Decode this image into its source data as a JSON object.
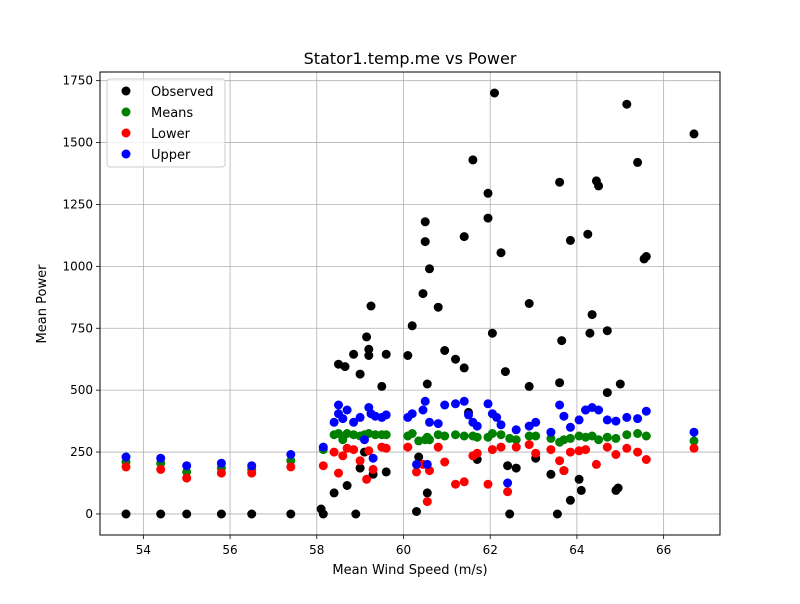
{
  "chart_data": {
    "type": "scatter",
    "title": "Stator1.temp.me vs Power",
    "xlabel": "Mean Wind Speed (m/s)",
    "ylabel": "Mean Power",
    "xlim": [
      53.0,
      67.3
    ],
    "ylim": [
      -85,
      1785
    ],
    "xticks": [
      54,
      56,
      58,
      60,
      62,
      64,
      66
    ],
    "yticks": [
      0,
      250,
      500,
      750,
      1000,
      1250,
      1500,
      1750
    ],
    "grid": true,
    "legend_position": "top-left",
    "series": [
      {
        "name": "Observed",
        "color": "#000000",
        "points": [
          [
            53.6,
            0
          ],
          [
            54.4,
            0
          ],
          [
            55.0,
            0
          ],
          [
            55.8,
            0
          ],
          [
            56.5,
            0
          ],
          [
            57.4,
            0
          ],
          [
            58.1,
            20
          ],
          [
            58.15,
            0
          ],
          [
            58.4,
            85
          ],
          [
            58.5,
            605
          ],
          [
            58.65,
            595
          ],
          [
            58.7,
            115
          ],
          [
            58.85,
            645
          ],
          [
            58.9,
            0
          ],
          [
            59.0,
            565
          ],
          [
            59.0,
            185
          ],
          [
            59.1,
            250
          ],
          [
            59.15,
            715
          ],
          [
            59.2,
            665
          ],
          [
            59.2,
            640
          ],
          [
            59.25,
            840
          ],
          [
            59.3,
            160
          ],
          [
            59.5,
            515
          ],
          [
            59.6,
            645
          ],
          [
            59.6,
            170
          ],
          [
            60.1,
            640
          ],
          [
            60.2,
            760
          ],
          [
            60.3,
            10
          ],
          [
            60.35,
            230
          ],
          [
            60.45,
            890
          ],
          [
            60.5,
            1180
          ],
          [
            60.5,
            1100
          ],
          [
            60.55,
            85
          ],
          [
            60.55,
            525
          ],
          [
            60.6,
            990
          ],
          [
            60.8,
            835
          ],
          [
            60.95,
            660
          ],
          [
            61.2,
            625
          ],
          [
            61.4,
            590
          ],
          [
            61.4,
            1120
          ],
          [
            61.5,
            410
          ],
          [
            61.6,
            1430
          ],
          [
            61.7,
            220
          ],
          [
            61.95,
            1295
          ],
          [
            61.95,
            1195
          ],
          [
            62.05,
            730
          ],
          [
            62.1,
            1700
          ],
          [
            62.25,
            1055
          ],
          [
            62.35,
            575
          ],
          [
            62.4,
            195
          ],
          [
            62.45,
            0
          ],
          [
            62.6,
            185
          ],
          [
            62.9,
            515
          ],
          [
            62.9,
            850
          ],
          [
            63.05,
            225
          ],
          [
            63.4,
            160
          ],
          [
            63.6,
            1340
          ],
          [
            63.6,
            530
          ],
          [
            63.65,
            700
          ],
          [
            63.7,
            175
          ],
          [
            63.85,
            55
          ],
          [
            63.85,
            1105
          ],
          [
            64.05,
            140
          ],
          [
            64.1,
            95
          ],
          [
            64.2,
            420
          ],
          [
            64.25,
            1130
          ],
          [
            64.3,
            730
          ],
          [
            64.35,
            805
          ],
          [
            64.45,
            1345
          ],
          [
            64.5,
            1325
          ],
          [
            64.7,
            740
          ],
          [
            64.7,
            490
          ],
          [
            64.9,
            95
          ],
          [
            64.95,
            105
          ],
          [
            65.0,
            525
          ],
          [
            65.15,
            1655
          ],
          [
            65.4,
            1420
          ],
          [
            65.55,
            1030
          ],
          [
            65.6,
            1040
          ],
          [
            66.7,
            1535
          ],
          [
            63.55,
            0
          ]
        ]
      },
      {
        "name": "Means",
        "color": "#008000",
        "points": [
          [
            53.6,
            210
          ],
          [
            54.4,
            205
          ],
          [
            55.0,
            170
          ],
          [
            55.8,
            185
          ],
          [
            56.5,
            180
          ],
          [
            57.4,
            215
          ],
          [
            58.15,
            260
          ],
          [
            58.4,
            320
          ],
          [
            58.5,
            325
          ],
          [
            58.6,
            300
          ],
          [
            58.7,
            325
          ],
          [
            58.85,
            320
          ],
          [
            59.0,
            315
          ],
          [
            59.1,
            320
          ],
          [
            59.2,
            325
          ],
          [
            59.35,
            320
          ],
          [
            59.5,
            320
          ],
          [
            59.6,
            320
          ],
          [
            60.1,
            315
          ],
          [
            60.2,
            325
          ],
          [
            60.35,
            295
          ],
          [
            60.5,
            300
          ],
          [
            60.55,
            310
          ],
          [
            60.6,
            300
          ],
          [
            60.8,
            320
          ],
          [
            60.95,
            315
          ],
          [
            61.2,
            320
          ],
          [
            61.4,
            315
          ],
          [
            61.6,
            315
          ],
          [
            61.7,
            310
          ],
          [
            61.95,
            310
          ],
          [
            62.05,
            325
          ],
          [
            62.25,
            320
          ],
          [
            62.45,
            305
          ],
          [
            62.6,
            300
          ],
          [
            62.9,
            315
          ],
          [
            63.05,
            315
          ],
          [
            63.4,
            305
          ],
          [
            63.6,
            290
          ],
          [
            63.7,
            300
          ],
          [
            63.85,
            305
          ],
          [
            64.05,
            315
          ],
          [
            64.2,
            310
          ],
          [
            64.35,
            315
          ],
          [
            64.5,
            300
          ],
          [
            64.7,
            310
          ],
          [
            64.9,
            305
          ],
          [
            65.15,
            320
          ],
          [
            65.4,
            325
          ],
          [
            65.6,
            315
          ],
          [
            66.7,
            295
          ]
        ]
      },
      {
        "name": "Lower",
        "color": "#ff0000",
        "points": [
          [
            53.6,
            190
          ],
          [
            54.4,
            180
          ],
          [
            55.0,
            145
          ],
          [
            55.8,
            165
          ],
          [
            56.5,
            165
          ],
          [
            57.4,
            190
          ],
          [
            58.15,
            195
          ],
          [
            58.4,
            250
          ],
          [
            58.5,
            165
          ],
          [
            58.6,
            235
          ],
          [
            58.7,
            265
          ],
          [
            58.85,
            260
          ],
          [
            59.0,
            215
          ],
          [
            59.15,
            140
          ],
          [
            59.2,
            255
          ],
          [
            59.3,
            180
          ],
          [
            59.5,
            270
          ],
          [
            59.6,
            265
          ],
          [
            60.1,
            270
          ],
          [
            60.3,
            170
          ],
          [
            60.45,
            200
          ],
          [
            60.55,
            50
          ],
          [
            60.6,
            175
          ],
          [
            60.8,
            270
          ],
          [
            60.95,
            210
          ],
          [
            61.2,
            120
          ],
          [
            61.4,
            130
          ],
          [
            61.6,
            235
          ],
          [
            61.7,
            245
          ],
          [
            61.95,
            120
          ],
          [
            62.05,
            260
          ],
          [
            62.25,
            270
          ],
          [
            62.4,
            90
          ],
          [
            62.6,
            270
          ],
          [
            62.9,
            280
          ],
          [
            63.05,
            245
          ],
          [
            63.4,
            260
          ],
          [
            63.6,
            215
          ],
          [
            63.7,
            175
          ],
          [
            63.85,
            250
          ],
          [
            64.05,
            255
          ],
          [
            64.2,
            260
          ],
          [
            64.45,
            200
          ],
          [
            64.7,
            270
          ],
          [
            64.9,
            240
          ],
          [
            65.15,
            265
          ],
          [
            65.4,
            250
          ],
          [
            65.6,
            220
          ],
          [
            66.7,
            265
          ]
        ]
      },
      {
        "name": "Upper",
        "color": "#0000ff",
        "points": [
          [
            53.6,
            230
          ],
          [
            54.4,
            225
          ],
          [
            55.0,
            195
          ],
          [
            55.8,
            205
          ],
          [
            56.5,
            195
          ],
          [
            57.4,
            240
          ],
          [
            58.15,
            270
          ],
          [
            58.4,
            370
          ],
          [
            58.5,
            440
          ],
          [
            58.5,
            405
          ],
          [
            58.6,
            385
          ],
          [
            58.7,
            420
          ],
          [
            58.85,
            370
          ],
          [
            59.0,
            390
          ],
          [
            59.1,
            300
          ],
          [
            59.2,
            430
          ],
          [
            59.25,
            405
          ],
          [
            59.3,
            225
          ],
          [
            59.35,
            395
          ],
          [
            59.5,
            390
          ],
          [
            59.6,
            400
          ],
          [
            60.1,
            390
          ],
          [
            60.2,
            405
          ],
          [
            60.3,
            200
          ],
          [
            60.45,
            420
          ],
          [
            60.5,
            455
          ],
          [
            60.55,
            200
          ],
          [
            60.6,
            370
          ],
          [
            60.8,
            365
          ],
          [
            60.95,
            440
          ],
          [
            61.2,
            445
          ],
          [
            61.4,
            455
          ],
          [
            61.5,
            400
          ],
          [
            61.6,
            370
          ],
          [
            61.7,
            355
          ],
          [
            61.95,
            445
          ],
          [
            62.05,
            405
          ],
          [
            62.15,
            390
          ],
          [
            62.25,
            360
          ],
          [
            62.4,
            125
          ],
          [
            62.6,
            340
          ],
          [
            62.9,
            355
          ],
          [
            63.05,
            370
          ],
          [
            63.4,
            330
          ],
          [
            63.6,
            440
          ],
          [
            63.7,
            395
          ],
          [
            63.85,
            350
          ],
          [
            64.05,
            380
          ],
          [
            64.2,
            420
          ],
          [
            64.35,
            430
          ],
          [
            64.5,
            420
          ],
          [
            64.7,
            380
          ],
          [
            64.9,
            375
          ],
          [
            65.15,
            390
          ],
          [
            65.4,
            385
          ],
          [
            65.6,
            415
          ],
          [
            66.7,
            330
          ]
        ]
      }
    ]
  }
}
